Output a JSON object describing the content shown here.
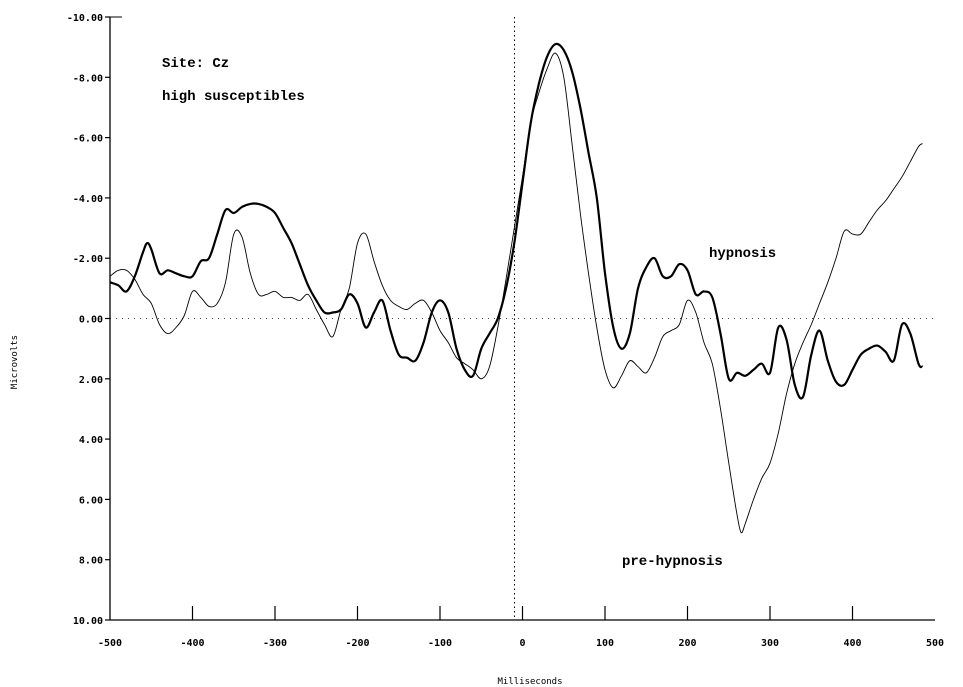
{
  "chart_data": {
    "type": "line",
    "xlabel": "Milliseconds",
    "ylabel": "Microvolts",
    "xlim": [
      -500,
      500
    ],
    "ylim": [
      -10,
      10
    ],
    "y_inverted": true,
    "x_ticks": [
      "-500",
      "-400",
      "-300",
      "-200",
      "-100",
      "0",
      "100",
      "200",
      "300",
      "400",
      "500"
    ],
    "y_ticks": [
      "-10.00",
      "-8.00",
      "-6.00",
      "-4.00",
      "-2.00",
      "0.00",
      "2.00",
      "4.00",
      "6.00",
      "8.00",
      "10.00"
    ],
    "grid": false,
    "reference_lines": {
      "zero_x": 0,
      "zero_y": 0
    },
    "annotations": [
      "Site: Cz",
      "high susceptibles",
      "hypnosis",
      "pre-hypnosis"
    ],
    "series": [
      {
        "name": "hypnosis",
        "color": "#000000",
        "x": [
          -500,
          -490,
          -480,
          -470,
          -460,
          -455,
          -450,
          -440,
          -430,
          -420,
          -410,
          -400,
          -390,
          -380,
          -370,
          -360,
          -350,
          -340,
          -330,
          -320,
          -310,
          -300,
          -290,
          -280,
          -270,
          -260,
          -250,
          -240,
          -230,
          -220,
          -210,
          -200,
          -190,
          -180,
          -170,
          -160,
          -150,
          -140,
          -130,
          -120,
          -110,
          -100,
          -90,
          -80,
          -70,
          -60,
          -50,
          -40,
          -30,
          -20,
          -10,
          0,
          10,
          20,
          30,
          40,
          50,
          60,
          70,
          80,
          90,
          100,
          110,
          120,
          130,
          140,
          150,
          160,
          170,
          180,
          190,
          200,
          210,
          220,
          230,
          240,
          250,
          260,
          270,
          280,
          290,
          300,
          310,
          320,
          330,
          340,
          350,
          360,
          370,
          380,
          390,
          400,
          410,
          420,
          430,
          440,
          450,
          460,
          470,
          480,
          485
        ],
        "y": [
          -1.2,
          -1.1,
          -0.9,
          -1.4,
          -2.2,
          -2.5,
          -2.3,
          -1.5,
          -1.6,
          -1.5,
          -1.4,
          -1.4,
          -1.9,
          -2.0,
          -2.8,
          -3.6,
          -3.5,
          -3.7,
          -3.8,
          -3.8,
          -3.7,
          -3.5,
          -3.0,
          -2.5,
          -1.8,
          -1.1,
          -0.6,
          -0.2,
          -0.2,
          -0.3,
          -0.8,
          -0.5,
          0.3,
          -0.2,
          -0.6,
          0.4,
          1.2,
          1.3,
          1.4,
          0.8,
          -0.2,
          -0.6,
          -0.2,
          1.0,
          1.7,
          1.9,
          1.0,
          0.5,
          0.0,
          -1.0,
          -2.5,
          -4.5,
          -6.5,
          -7.8,
          -8.7,
          -9.1,
          -8.9,
          -8.2,
          -7.0,
          -5.5,
          -4.0,
          -1.5,
          0.3,
          1.0,
          0.5,
          -1.0,
          -1.7,
          -2.0,
          -1.4,
          -1.4,
          -1.8,
          -1.6,
          -0.8,
          -0.9,
          -0.7,
          0.5,
          2.0,
          1.8,
          1.9,
          1.7,
          1.5,
          1.8,
          0.3,
          0.7,
          2.2,
          2.6,
          1.2,
          0.4,
          1.4,
          2.1,
          2.2,
          1.7,
          1.2,
          1.0,
          0.9,
          1.1,
          1.4,
          0.2,
          0.5,
          1.5,
          1.6
        ]
      },
      {
        "name": "pre-hypnosis",
        "color": "#000000",
        "x": [
          -500,
          -490,
          -480,
          -470,
          -460,
          -450,
          -440,
          -430,
          -420,
          -410,
          -400,
          -390,
          -380,
          -370,
          -360,
          -350,
          -340,
          -330,
          -320,
          -310,
          -300,
          -290,
          -280,
          -270,
          -260,
          -250,
          -240,
          -230,
          -220,
          -210,
          -200,
          -190,
          -180,
          -170,
          -160,
          -150,
          -140,
          -130,
          -120,
          -110,
          -100,
          -90,
          -80,
          -70,
          -60,
          -50,
          -40,
          -30,
          -20,
          -10,
          0,
          10,
          20,
          30,
          40,
          50,
          60,
          70,
          80,
          90,
          100,
          110,
          120,
          130,
          140,
          150,
          160,
          170,
          180,
          190,
          200,
          210,
          220,
          230,
          240,
          250,
          260,
          265,
          270,
          280,
          290,
          300,
          310,
          320,
          330,
          340,
          350,
          360,
          370,
          380,
          390,
          400,
          410,
          420,
          430,
          440,
          450,
          460,
          470,
          480,
          485
        ],
        "y": [
          -1.4,
          -1.6,
          -1.6,
          -1.3,
          -0.8,
          -0.5,
          0.2,
          0.5,
          0.3,
          -0.1,
          -0.9,
          -0.7,
          -0.4,
          -0.5,
          -1.2,
          -2.8,
          -2.7,
          -1.5,
          -0.8,
          -0.8,
          -0.9,
          -0.7,
          -0.7,
          -0.6,
          -0.8,
          -0.3,
          0.2,
          0.6,
          -0.3,
          -1.0,
          -2.5,
          -2.8,
          -1.9,
          -1.1,
          -0.6,
          -0.4,
          -0.3,
          -0.5,
          -0.6,
          -0.2,
          0.4,
          0.8,
          1.3,
          1.5,
          1.7,
          2.0,
          1.6,
          0.3,
          -1.3,
          -3.0,
          -4.7,
          -6.5,
          -7.5,
          -8.3,
          -8.8,
          -8.0,
          -5.8,
          -3.5,
          -1.5,
          0.3,
          1.7,
          2.3,
          1.9,
          1.4,
          1.6,
          1.8,
          1.3,
          0.6,
          0.4,
          0.2,
          -0.6,
          -0.2,
          0.8,
          1.5,
          3.0,
          4.8,
          6.5,
          7.1,
          6.8,
          6.0,
          5.3,
          4.8,
          3.8,
          2.5,
          1.5,
          0.8,
          0.2,
          -0.5,
          -1.2,
          -2.0,
          -2.9,
          -2.8,
          -2.8,
          -3.2,
          -3.6,
          -3.9,
          -4.3,
          -4.7,
          -5.2,
          -5.7,
          -5.8
        ]
      }
    ]
  }
}
